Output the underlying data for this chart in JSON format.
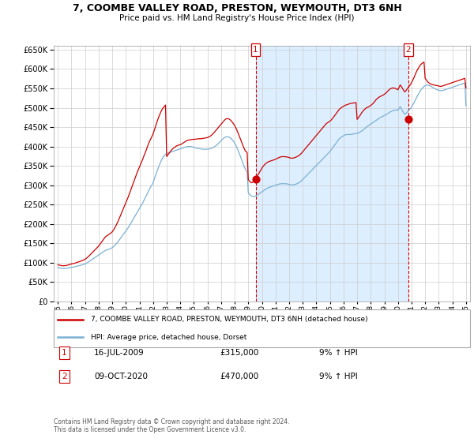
{
  "title": "7, COOMBE VALLEY ROAD, PRESTON, WEYMOUTH, DT3 6NH",
  "subtitle": "Price paid vs. HM Land Registry's House Price Index (HPI)",
  "legend_line1": "7, COOMBE VALLEY ROAD, PRESTON, WEYMOUTH, DT3 6NH (detached house)",
  "legend_line2": "HPI: Average price, detached house, Dorset",
  "annotation1_date": "16-JUL-2009",
  "annotation1_price": "£315,000",
  "annotation1_hpi": "9% ↑ HPI",
  "annotation1_year": 2009.54,
  "annotation1_value": 315000,
  "annotation2_date": "09-OCT-2020",
  "annotation2_price": "£470,000",
  "annotation2_hpi": "9% ↑ HPI",
  "annotation2_year": 2020.77,
  "annotation2_value": 470000,
  "ylim": [
    0,
    660000
  ],
  "xlim_start": 1994.7,
  "xlim_end": 2025.3,
  "red_color": "#cc0000",
  "blue_color": "#7ab0d4",
  "shade_color": "#ddeeff",
  "background_color": "#ffffff",
  "grid_color": "#cccccc",
  "footer": "Contains HM Land Registry data © Crown copyright and database right 2024.\nThis data is licensed under the Open Government Licence v3.0.",
  "hpi_years": [
    1995.0,
    1995.083,
    1995.167,
    1995.25,
    1995.333,
    1995.417,
    1995.5,
    1995.583,
    1995.667,
    1995.75,
    1995.833,
    1995.917,
    1996.0,
    1996.083,
    1996.167,
    1996.25,
    1996.333,
    1996.417,
    1996.5,
    1996.583,
    1996.667,
    1996.75,
    1996.833,
    1996.917,
    1997.0,
    1997.083,
    1997.167,
    1997.25,
    1997.333,
    1997.417,
    1997.5,
    1997.583,
    1997.667,
    1997.75,
    1997.833,
    1997.917,
    1998.0,
    1998.083,
    1998.167,
    1998.25,
    1998.333,
    1998.417,
    1998.5,
    1998.583,
    1998.667,
    1998.75,
    1998.833,
    1998.917,
    1999.0,
    1999.083,
    1999.167,
    1999.25,
    1999.333,
    1999.417,
    1999.5,
    1999.583,
    1999.667,
    1999.75,
    1999.833,
    1999.917,
    2000.0,
    2000.083,
    2000.167,
    2000.25,
    2000.333,
    2000.417,
    2000.5,
    2000.583,
    2000.667,
    2000.75,
    2000.833,
    2000.917,
    2001.0,
    2001.083,
    2001.167,
    2001.25,
    2001.333,
    2001.417,
    2001.5,
    2001.583,
    2001.667,
    2001.75,
    2001.833,
    2001.917,
    2002.0,
    2002.083,
    2002.167,
    2002.25,
    2002.333,
    2002.417,
    2002.5,
    2002.583,
    2002.667,
    2002.75,
    2002.833,
    2002.917,
    2003.0,
    2003.083,
    2003.167,
    2003.25,
    2003.333,
    2003.417,
    2003.5,
    2003.583,
    2003.667,
    2003.75,
    2003.833,
    2003.917,
    2004.0,
    2004.083,
    2004.167,
    2004.25,
    2004.333,
    2004.417,
    2004.5,
    2004.583,
    2004.667,
    2004.75,
    2004.833,
    2004.917,
    2005.0,
    2005.083,
    2005.167,
    2005.25,
    2005.333,
    2005.417,
    2005.5,
    2005.583,
    2005.667,
    2005.75,
    2005.833,
    2005.917,
    2006.0,
    2006.083,
    2006.167,
    2006.25,
    2006.333,
    2006.417,
    2006.5,
    2006.583,
    2006.667,
    2006.75,
    2006.833,
    2006.917,
    2007.0,
    2007.083,
    2007.167,
    2007.25,
    2007.333,
    2007.417,
    2007.5,
    2007.583,
    2007.667,
    2007.75,
    2007.833,
    2007.917,
    2008.0,
    2008.083,
    2008.167,
    2008.25,
    2008.333,
    2008.417,
    2008.5,
    2008.583,
    2008.667,
    2008.75,
    2008.833,
    2008.917,
    2009.0,
    2009.083,
    2009.167,
    2009.25,
    2009.333,
    2009.417,
    2009.5,
    2009.583,
    2009.667,
    2009.75,
    2009.833,
    2009.917,
    2010.0,
    2010.083,
    2010.167,
    2010.25,
    2010.333,
    2010.417,
    2010.5,
    2010.583,
    2010.667,
    2010.75,
    2010.833,
    2010.917,
    2011.0,
    2011.083,
    2011.167,
    2011.25,
    2011.333,
    2011.417,
    2011.5,
    2011.583,
    2011.667,
    2011.75,
    2011.833,
    2011.917,
    2012.0,
    2012.083,
    2012.167,
    2012.25,
    2012.333,
    2012.417,
    2012.5,
    2012.583,
    2012.667,
    2012.75,
    2012.833,
    2012.917,
    2013.0,
    2013.083,
    2013.167,
    2013.25,
    2013.333,
    2013.417,
    2013.5,
    2013.583,
    2013.667,
    2013.75,
    2013.833,
    2013.917,
    2014.0,
    2014.083,
    2014.167,
    2014.25,
    2014.333,
    2014.417,
    2014.5,
    2014.583,
    2014.667,
    2014.75,
    2014.833,
    2014.917,
    2015.0,
    2015.083,
    2015.167,
    2015.25,
    2015.333,
    2015.417,
    2015.5,
    2015.583,
    2015.667,
    2015.75,
    2015.833,
    2015.917,
    2016.0,
    2016.083,
    2016.167,
    2016.25,
    2016.333,
    2016.417,
    2016.5,
    2016.583,
    2016.667,
    2016.75,
    2016.833,
    2016.917,
    2017.0,
    2017.083,
    2017.167,
    2017.25,
    2017.333,
    2017.417,
    2017.5,
    2017.583,
    2017.667,
    2017.75,
    2017.833,
    2017.917,
    2018.0,
    2018.083,
    2018.167,
    2018.25,
    2018.333,
    2018.417,
    2018.5,
    2018.583,
    2018.667,
    2018.75,
    2018.833,
    2018.917,
    2019.0,
    2019.083,
    2019.167,
    2019.25,
    2019.333,
    2019.417,
    2019.5,
    2019.583,
    2019.667,
    2019.75,
    2019.833,
    2019.917,
    2020.0,
    2020.083,
    2020.167,
    2020.25,
    2020.333,
    2020.417,
    2020.5,
    2020.583,
    2020.667,
    2020.75,
    2020.833,
    2020.917,
    2021.0,
    2021.083,
    2021.167,
    2021.25,
    2021.333,
    2021.417,
    2021.5,
    2021.583,
    2021.667,
    2021.75,
    2021.833,
    2021.917,
    2022.0,
    2022.083,
    2022.167,
    2022.25,
    2022.333,
    2022.417,
    2022.5,
    2022.583,
    2022.667,
    2022.75,
    2022.833,
    2022.917,
    2023.0,
    2023.083,
    2023.167,
    2023.25,
    2023.333,
    2023.417,
    2023.5,
    2023.583,
    2023.667,
    2023.75,
    2023.833,
    2023.917,
    2024.0,
    2024.083,
    2024.167,
    2024.25,
    2024.333,
    2024.417,
    2024.5,
    2024.583,
    2024.667,
    2024.75,
    2024.833,
    2024.917,
    2025.0
  ],
  "hpi_values": [
    88000,
    87000,
    86500,
    86000,
    85500,
    85000,
    85200,
    85500,
    86000,
    86500,
    87000,
    87500,
    88000,
    88500,
    89000,
    89800,
    90500,
    91200,
    92000,
    92800,
    93500,
    94200,
    95000,
    96000,
    97000,
    98500,
    100000,
    102000,
    104000,
    106000,
    108000,
    110000,
    112000,
    114000,
    116000,
    118000,
    120000,
    122000,
    124000,
    126000,
    128000,
    130000,
    132000,
    133000,
    134000,
    135000,
    136000,
    137000,
    139000,
    141500,
    144000,
    147000,
    150500,
    154000,
    158000,
    162000,
    166000,
    170000,
    174000,
    178000,
    182000,
    186000,
    190000,
    195000,
    200000,
    205000,
    210000,
    215000,
    220000,
    225000,
    230000,
    235000,
    240000,
    245000,
    250000,
    255000,
    261000,
    267000,
    273000,
    279000,
    285000,
    291000,
    296000,
    301000,
    306000,
    315000,
    324000,
    332000,
    340000,
    348000,
    355000,
    362000,
    368000,
    373000,
    377000,
    380000,
    382000,
    383000,
    384000,
    385000,
    386000,
    387000,
    388000,
    389000,
    390000,
    391000,
    392000,
    393000,
    394000,
    395000,
    396000,
    397000,
    398000,
    399000,
    399500,
    400000,
    400000,
    400000,
    399500,
    399000,
    398000,
    397000,
    396000,
    395500,
    395000,
    394500,
    394000,
    393500,
    393000,
    393000,
    393000,
    393000,
    393000,
    393500,
    394000,
    395000,
    396000,
    397500,
    399000,
    401000,
    403500,
    406000,
    409000,
    412000,
    415000,
    418000,
    421000,
    423000,
    424500,
    425500,
    425000,
    424000,
    422500,
    420000,
    417000,
    413500,
    409000,
    403500,
    397000,
    390000,
    383000,
    375000,
    367000,
    359000,
    351000,
    344000,
    339000,
    335000,
    281000,
    277000,
    274000,
    272000,
    271000,
    271000,
    272000,
    273500,
    275000,
    277000,
    279000,
    281000,
    283000,
    285000,
    287000,
    289000,
    291000,
    292500,
    294000,
    295000,
    296000,
    297000,
    298000,
    299000,
    300000,
    301000,
    302000,
    303000,
    303500,
    304000,
    304000,
    304000,
    304000,
    304000,
    303500,
    303000,
    302000,
    301000,
    301000,
    301000,
    301500,
    302000,
    303000,
    304000,
    305500,
    307000,
    309500,
    312000,
    315000,
    318000,
    321000,
    324000,
    327000,
    330000,
    333000,
    336000,
    339000,
    342000,
    345000,
    348000,
    351000,
    354000,
    357000,
    360000,
    363000,
    366000,
    369000,
    372000,
    375000,
    378000,
    381000,
    384000,
    387000,
    391000,
    395000,
    399000,
    403000,
    407000,
    411000,
    415000,
    419000,
    422000,
    424000,
    426000,
    428000,
    429500,
    430500,
    431000,
    431000,
    431000,
    431000,
    431500,
    432000,
    432500,
    433000,
    433500,
    434000,
    435000,
    436500,
    438000,
    440000,
    442000,
    444500,
    447000,
    449500,
    452000,
    454000,
    456000,
    458000,
    460000,
    462000,
    464000,
    466000,
    468000,
    470000,
    472000,
    474000,
    475500,
    477000,
    478500,
    480000,
    481500,
    483000,
    485000,
    487000,
    489000,
    490500,
    492000,
    493000,
    493500,
    494000,
    494000,
    494000,
    498000,
    503000,
    498000,
    492000,
    487000,
    483000,
    485000,
    488000,
    492000,
    495000,
    498000,
    502000,
    507000,
    512000,
    518000,
    524000,
    530000,
    535000,
    540000,
    545000,
    549000,
    552000,
    555000,
    557000,
    558000,
    558500,
    558000,
    557000,
    555500,
    554000,
    552000,
    550000,
    548500,
    547000,
    546000,
    545000,
    544500,
    544000,
    544500,
    545000,
    546000,
    547000,
    548000,
    549000,
    550000,
    551000,
    552000,
    553000,
    554000,
    555000,
    556000,
    557000,
    558000,
    559000,
    560000,
    561000,
    562000,
    563000,
    564000,
    505000
  ],
  "red_values": [
    95000,
    94000,
    93500,
    93000,
    92500,
    92000,
    92500,
    93000,
    93500,
    94000,
    95000,
    96000,
    97000,
    97500,
    98000,
    99000,
    100000,
    101000,
    102000,
    103000,
    104000,
    105000,
    106000,
    107500,
    109000,
    111000,
    113500,
    116000,
    119000,
    122000,
    125000,
    128000,
    131000,
    134000,
    137000,
    140000,
    143000,
    147000,
    151000,
    155000,
    159000,
    163000,
    167000,
    169000,
    171000,
    173000,
    175000,
    177000,
    180000,
    184000,
    189000,
    194000,
    200000,
    206000,
    213000,
    220000,
    227000,
    234000,
    241000,
    248000,
    255000,
    262000,
    269000,
    277000,
    285000,
    293000,
    301000,
    309000,
    317000,
    325000,
    333000,
    340000,
    347000,
    354000,
    361000,
    368000,
    376000,
    383000,
    391000,
    399000,
    407000,
    414000,
    420000,
    426000,
    432000,
    441000,
    450000,
    459000,
    468000,
    476000,
    483000,
    490000,
    496000,
    500000,
    504000,
    507000,
    374000,
    378000,
    382000,
    386000,
    390000,
    393000,
    396000,
    398000,
    400000,
    402000,
    403000,
    404000,
    405000,
    406000,
    408000,
    410000,
    412000,
    414000,
    415500,
    416500,
    417000,
    417500,
    418000,
    418500,
    418500,
    419000,
    419000,
    419500,
    420000,
    420000,
    420000,
    420500,
    421000,
    421500,
    422000,
    422500,
    423000,
    424500,
    426000,
    428000,
    430500,
    433500,
    436500,
    440000,
    443500,
    447000,
    450500,
    454000,
    457500,
    461000,
    464500,
    468000,
    470500,
    472000,
    472000,
    471000,
    469000,
    466000,
    462500,
    458500,
    454000,
    448500,
    442000,
    435000,
    427500,
    420000,
    412500,
    405000,
    397500,
    391000,
    387000,
    384500,
    315000,
    311000,
    308000,
    306500,
    308000,
    310500,
    314000,
    319000,
    324000,
    329000,
    334000,
    339000,
    344000,
    348500,
    352000,
    355000,
    357500,
    359500,
    361000,
    362000,
    363000,
    364000,
    365000,
    366000,
    367000,
    368500,
    370000,
    371500,
    372500,
    373500,
    374000,
    374000,
    373500,
    373500,
    373000,
    372500,
    371500,
    370500,
    370000,
    370000,
    370500,
    371500,
    372500,
    374000,
    375500,
    377500,
    380000,
    383000,
    386500,
    390000,
    393500,
    397000,
    400500,
    404000,
    407500,
    411000,
    414500,
    418000,
    421500,
    425000,
    428500,
    432000,
    435500,
    439000,
    442500,
    446000,
    449500,
    453000,
    456500,
    459500,
    461500,
    463500,
    465500,
    468000,
    471500,
    475000,
    479000,
    483000,
    487000,
    491000,
    495000,
    498000,
    500000,
    502000,
    504000,
    505500,
    507000,
    508000,
    509000,
    510000,
    511000,
    511500,
    512000,
    512500,
    513000,
    513500,
    470000,
    474000,
    478000,
    482000,
    487000,
    491000,
    494000,
    497000,
    499500,
    501000,
    502500,
    504000,
    506000,
    508500,
    511000,
    514500,
    518000,
    522000,
    524500,
    526500,
    528500,
    530000,
    531500,
    533000,
    535000,
    537000,
    540000,
    543000,
    546000,
    548500,
    550000,
    551000,
    551000,
    550500,
    549500,
    548000,
    546500,
    553000,
    559000,
    555000,
    550000,
    545000,
    541000,
    544000,
    548000,
    552000,
    556000,
    560000,
    565000,
    571000,
    577000,
    584000,
    591000,
    597000,
    602000,
    607000,
    611000,
    614000,
    616000,
    618000,
    576000,
    572000,
    568000,
    565000,
    563000,
    561000,
    560000,
    559500,
    558500,
    558000,
    557500,
    557000,
    556000,
    555500,
    555000,
    556000,
    557000,
    558000,
    559000,
    560000,
    561000,
    562000,
    563000,
    564000,
    565000,
    566000,
    567000,
    568000,
    569000,
    570000,
    571000,
    572000,
    573000,
    574000,
    575000,
    576000,
    551000
  ]
}
